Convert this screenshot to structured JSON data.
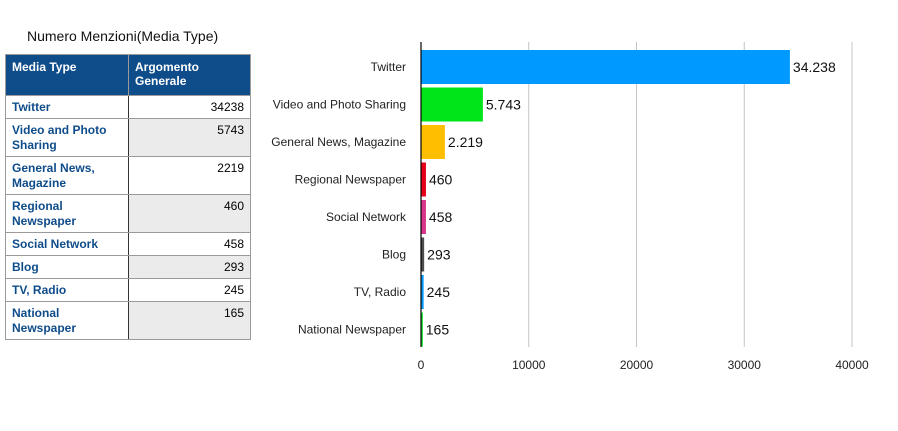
{
  "table": {
    "title": "Numero Menzioni(Media Type)",
    "headers": [
      "Media Type",
      "Argomento Generale"
    ],
    "rows": [
      {
        "label": "Twitter",
        "value": "34238"
      },
      {
        "label": "Video and Photo Sharing",
        "value": "5743"
      },
      {
        "label": "General News, Magazine",
        "value": "2219"
      },
      {
        "label": "Regional Newspaper",
        "value": "460"
      },
      {
        "label": "Social Network",
        "value": "458"
      },
      {
        "label": "Blog",
        "value": "293"
      },
      {
        "label": "TV, Radio",
        "value": "245"
      },
      {
        "label": "National Newspaper",
        "value": "165"
      }
    ]
  },
  "chart_data": {
    "type": "bar",
    "orientation": "horizontal",
    "categories": [
      "Twitter",
      "Video and Photo Sharing",
      "General News, Magazine",
      "Regional Newspaper",
      "Social Network",
      "Blog",
      "TV, Radio",
      "National Newspaper"
    ],
    "values": [
      34238,
      5743,
      2219,
      460,
      458,
      293,
      245,
      165
    ],
    "data_labels": [
      "34.238",
      "5.743",
      "2.219",
      "460",
      "458",
      "293",
      "245",
      "165"
    ],
    "colors": [
      "#0099ff",
      "#00e51a",
      "#ffbf00",
      "#e5001a",
      "#d9338c",
      "#4d4d4d",
      "#0099ff",
      "#00e51a"
    ],
    "xlim": [
      0,
      40000
    ],
    "xticks": [
      0,
      10000,
      20000,
      30000,
      40000
    ],
    "xtick_labels": [
      "0",
      "10000",
      "20000",
      "30000",
      "40000"
    ],
    "grid": true,
    "title": "",
    "xlabel": "",
    "ylabel": ""
  }
}
